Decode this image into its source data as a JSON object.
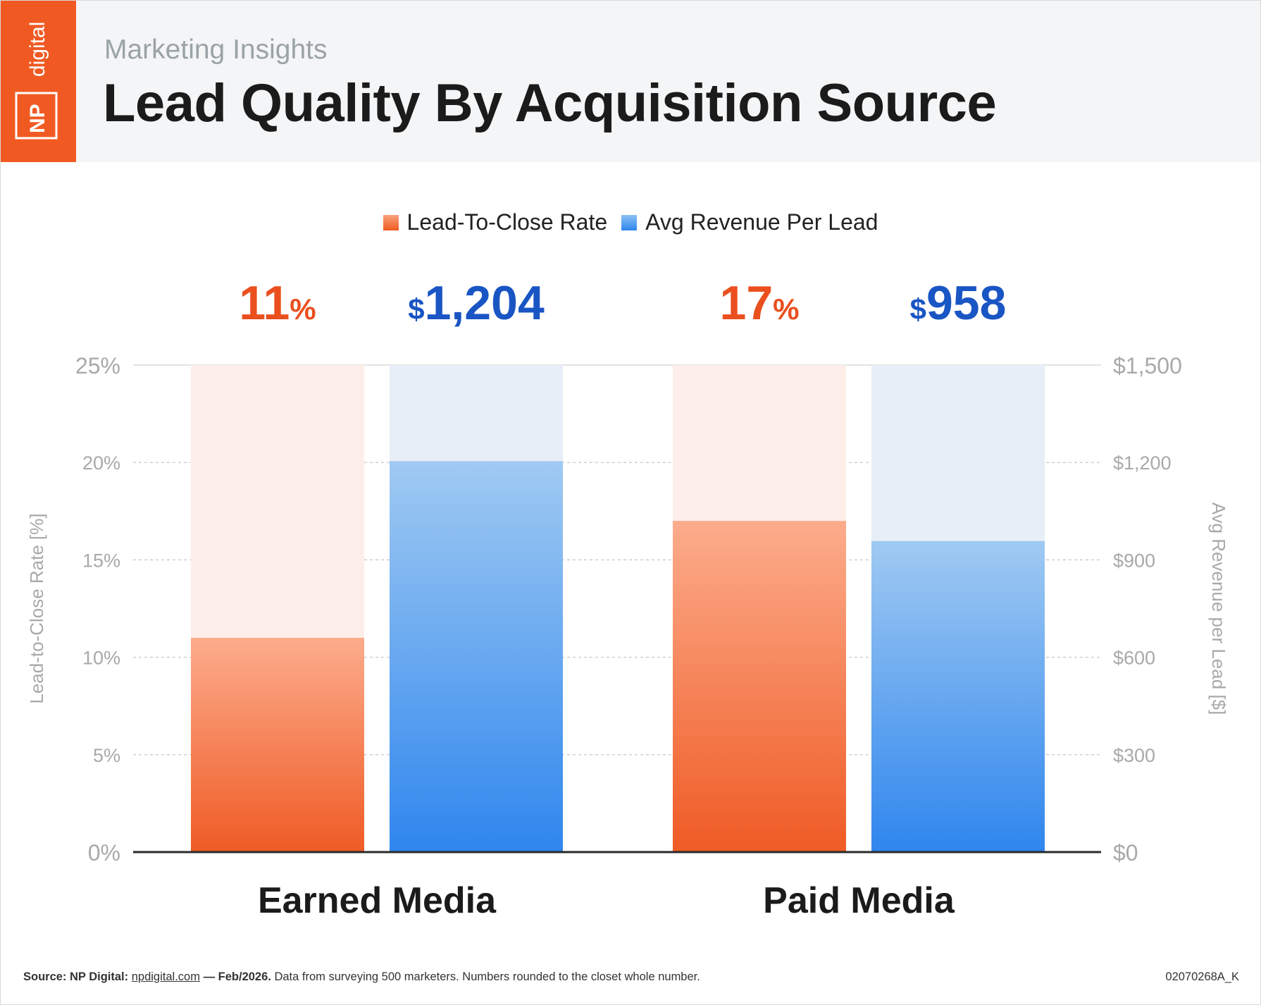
{
  "header": {
    "logo_text_np": "NP",
    "logo_text_digital": "digital",
    "subtitle": "Marketing Insights",
    "title": "Lead Quality By Acquisition Source"
  },
  "colors": {
    "brand_orange": "#f05a22",
    "series_red": "#f05a22",
    "series_blue": "#2f86ee",
    "value_red": "#ea4f1e",
    "value_blue": "#1a55c4"
  },
  "chart_data": {
    "type": "bar",
    "categories": [
      "Earned Media",
      "Paid Media"
    ],
    "series": [
      {
        "name": "Lead-To-Close Rate",
        "values": [
          11,
          17
        ],
        "value_labels": [
          "11",
          "17"
        ],
        "unit_suffix": "%",
        "axis": "left",
        "color": "#f05a22"
      },
      {
        "name": "Avg Revenue Per Lead",
        "values": [
          1204,
          958
        ],
        "value_labels": [
          "1,204",
          "958"
        ],
        "unit_prefix": "$",
        "axis": "right",
        "color": "#2f86ee"
      }
    ],
    "left_axis": {
      "label": "Lead-to-Close Rate [%]",
      "ylim": [
        0,
        25
      ],
      "ticks": [
        0,
        5,
        10,
        15,
        20,
        25
      ],
      "tick_labels": [
        "0%",
        "5%",
        "10%",
        "15%",
        "20%",
        "25%"
      ]
    },
    "right_axis": {
      "label": "Avg Revenue per Lead [$]",
      "ylim": [
        0,
        1500
      ],
      "ticks": [
        0,
        300,
        600,
        900,
        1200,
        1500
      ],
      "tick_labels": [
        "$0",
        "$300",
        "$600",
        "$900",
        "$1,200",
        "$1,500"
      ]
    },
    "grid": true,
    "legend_position": "top-center"
  },
  "footer": {
    "source_label": "Source: NP Digital:",
    "link": "npdigital.com",
    "date": "— Feb/2026.",
    "note": "Data from surveying 500 marketers. Numbers rounded to the closet whole number.",
    "code": "02070268A_K"
  }
}
